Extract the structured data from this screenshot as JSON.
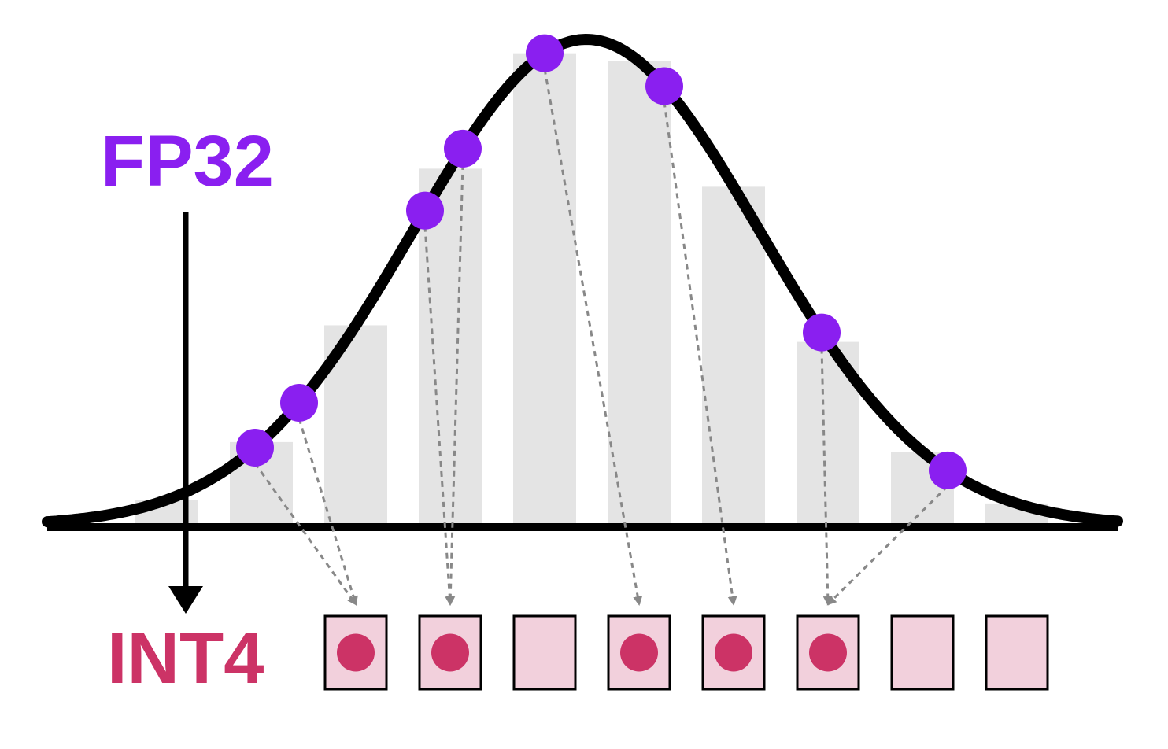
{
  "labels": {
    "fp32": "FP32",
    "int4": "INT4"
  },
  "colors": {
    "fp32": "#8a1ff0",
    "int4": "#cc3366",
    "int4_cell_fill": "#f2d0dc",
    "stripe": "#e4e4e4",
    "curve": "#000000",
    "mapping_arrow": "#888888"
  },
  "int4_cells": [
    {
      "occupied": true
    },
    {
      "occupied": true
    },
    {
      "occupied": false
    },
    {
      "occupied": true
    },
    {
      "occupied": true
    },
    {
      "occupied": true
    },
    {
      "occupied": false
    },
    {
      "occupied": false
    }
  ],
  "fp32_points": [
    {
      "bin": 0
    },
    {
      "bin": 0
    },
    {
      "bin": 1
    },
    {
      "bin": 1
    },
    {
      "bin": 3
    },
    {
      "bin": 4
    },
    {
      "bin": 5
    },
    {
      "bin": 5
    }
  ]
}
